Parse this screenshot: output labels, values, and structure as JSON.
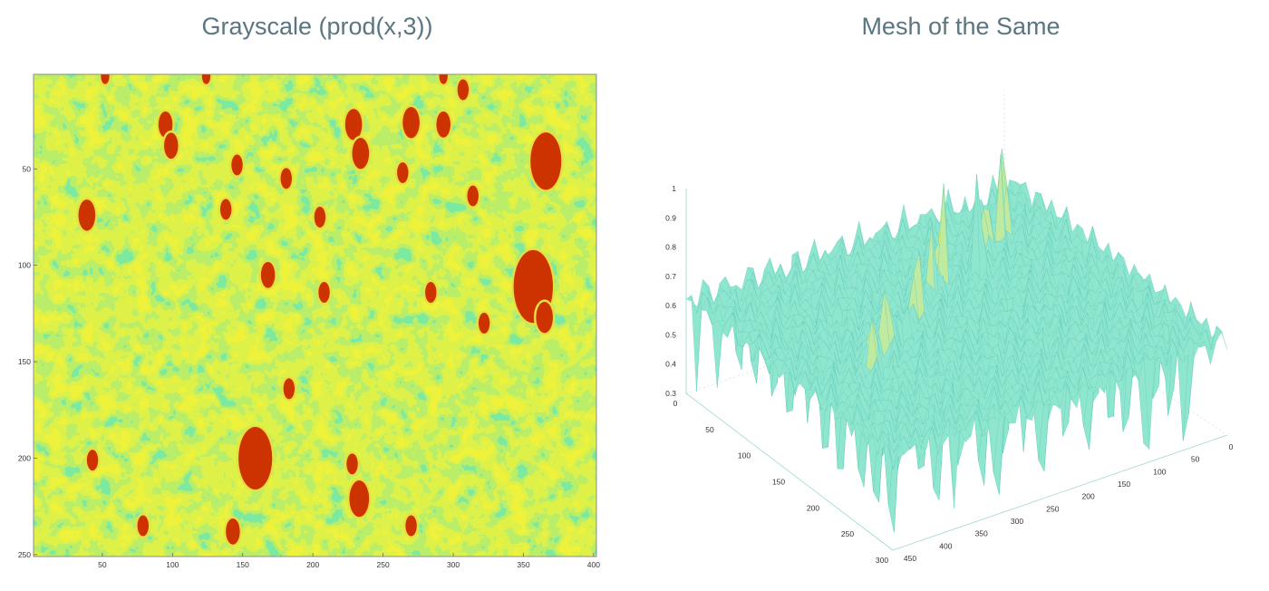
{
  "left_chart": {
    "title": "Grayscale (prod(x,3))",
    "x_ticks": [
      50,
      100,
      150,
      200,
      250,
      300,
      350,
      400
    ],
    "y_ticks": [
      50,
      100,
      150,
      200,
      250
    ]
  },
  "right_chart": {
    "title": "Mesh of the Same",
    "z_ticks": [
      "1",
      "0.9",
      "0.8",
      "0.7",
      "0.6",
      "0.5",
      "0.4",
      "0.3"
    ],
    "x_ticks": [
      "0",
      "50",
      "100",
      "150",
      "200",
      "250",
      "300",
      "350",
      "400",
      "450"
    ],
    "y_ticks": [
      "0",
      "50",
      "100",
      "150",
      "200",
      "250",
      "300"
    ]
  },
  "chart_data": [
    {
      "type": "heatmap",
      "title": "Grayscale (prod(x,3))",
      "xlim": [
        1,
        402
      ],
      "ylim": [
        251,
        1
      ],
      "colormap": [
        "#30e0e0",
        "#b8f070",
        "#f0f030",
        "#cc3300"
      ],
      "spots": [
        {
          "x": 52,
          "y": 2,
          "r": 3
        },
        {
          "x": 124,
          "y": 2,
          "r": 3
        },
        {
          "x": 293,
          "y": 2,
          "r": 3
        },
        {
          "x": 307,
          "y": 9,
          "r": 4
        },
        {
          "x": 95,
          "y": 27,
          "r": 5
        },
        {
          "x": 99,
          "y": 38,
          "r": 5
        },
        {
          "x": 229,
          "y": 27,
          "r": 6
        },
        {
          "x": 270,
          "y": 26,
          "r": 6
        },
        {
          "x": 293,
          "y": 27,
          "r": 5
        },
        {
          "x": 234,
          "y": 42,
          "r": 6
        },
        {
          "x": 146,
          "y": 48,
          "r": 4
        },
        {
          "x": 181,
          "y": 55,
          "r": 4
        },
        {
          "x": 264,
          "y": 52,
          "r": 4
        },
        {
          "x": 366,
          "y": 46,
          "r": 11
        },
        {
          "x": 314,
          "y": 64,
          "r": 4
        },
        {
          "x": 39,
          "y": 74,
          "r": 6
        },
        {
          "x": 138,
          "y": 71,
          "r": 4
        },
        {
          "x": 205,
          "y": 75,
          "r": 4
        },
        {
          "x": 168,
          "y": 105,
          "r": 5
        },
        {
          "x": 208,
          "y": 114,
          "r": 4
        },
        {
          "x": 284,
          "y": 114,
          "r": 4
        },
        {
          "x": 357,
          "y": 111,
          "r": 14
        },
        {
          "x": 365,
          "y": 127,
          "r": 6
        },
        {
          "x": 322,
          "y": 130,
          "r": 4
        },
        {
          "x": 183,
          "y": 164,
          "r": 4
        },
        {
          "x": 159,
          "y": 200,
          "r": 12
        },
        {
          "x": 43,
          "y": 201,
          "r": 4
        },
        {
          "x": 228,
          "y": 203,
          "r": 4
        },
        {
          "x": 233,
          "y": 221,
          "r": 7
        },
        {
          "x": 79,
          "y": 235,
          "r": 4
        },
        {
          "x": 143,
          "y": 238,
          "r": 5
        },
        {
          "x": 270,
          "y": 235,
          "r": 4
        }
      ]
    },
    {
      "type": "surface",
      "title": "Mesh of the Same",
      "zlim": [
        0.3,
        1
      ],
      "xlim": [
        0,
        450
      ],
      "ylim": [
        0,
        300
      ],
      "base_level": 0.62,
      "peaks": [
        {
          "x": 60,
          "y": 40,
          "z": 0.97
        },
        {
          "x": 80,
          "y": 60,
          "z": 0.95
        },
        {
          "x": 110,
          "y": 70,
          "z": 0.93
        },
        {
          "x": 140,
          "y": 90,
          "z": 0.96
        },
        {
          "x": 180,
          "y": 80,
          "z": 1.0
        },
        {
          "x": 210,
          "y": 100,
          "z": 0.94
        },
        {
          "x": 250,
          "y": 120,
          "z": 0.9
        },
        {
          "x": 280,
          "y": 140,
          "z": 0.95
        },
        {
          "x": 320,
          "y": 150,
          "z": 0.92
        },
        {
          "x": 360,
          "y": 170,
          "z": 0.88
        }
      ]
    }
  ]
}
